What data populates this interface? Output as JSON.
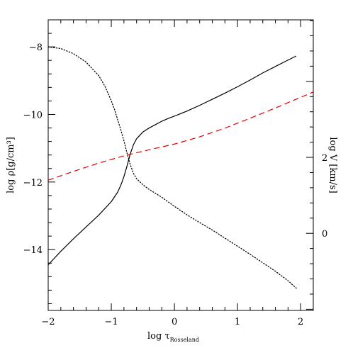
{
  "chart_data": {
    "type": "line",
    "title": "",
    "xlabel": "log τ",
    "xlabel_sub": "Rosseland",
    "ylabel_left": "log ρ[g/cm³]",
    "ylabel_right": "log V [km/s]",
    "xlim": [
      -2,
      2.2
    ],
    "ylim_left": [
      -15.8,
      -7.2
    ],
    "ylim_right": [
      -2.03,
      5.62
    ],
    "x_ticks": [
      -2,
      -1,
      0,
      1,
      2
    ],
    "x_tick_labels": [
      "−2",
      "−1",
      "0",
      "1",
      "2"
    ],
    "y_left_ticks": [
      -8,
      -10,
      -12,
      -14
    ],
    "y_left_tick_labels": [
      "−8",
      "−10",
      "−12",
      "−14"
    ],
    "y_right_ticks": [
      0,
      2
    ],
    "y_right_tick_labels": [
      "0",
      "2"
    ],
    "grid": false,
    "series": [
      {
        "axis": "left",
        "style": "solid",
        "color": "#000000",
        "x": [
          -2.0,
          -1.8,
          -1.6,
          -1.4,
          -1.2,
          -1.0,
          -0.9,
          -0.85,
          -0.8,
          -0.75,
          -0.7,
          -0.65,
          -0.6,
          -0.5,
          -0.4,
          -0.3,
          -0.2,
          -0.1,
          0.0,
          0.2,
          0.4,
          0.6,
          0.8,
          1.0,
          1.2,
          1.4,
          1.6,
          1.8,
          1.93
        ],
        "y": [
          -14.45,
          -14.05,
          -13.68,
          -13.33,
          -12.98,
          -12.58,
          -12.3,
          -12.1,
          -11.84,
          -11.52,
          -11.17,
          -10.9,
          -10.72,
          -10.52,
          -10.4,
          -10.3,
          -10.2,
          -10.12,
          -10.05,
          -9.9,
          -9.73,
          -9.55,
          -9.37,
          -9.18,
          -8.98,
          -8.77,
          -8.58,
          -8.39,
          -8.27
        ]
      },
      {
        "axis": "left",
        "style": "dotted",
        "color": "#000000",
        "x": [
          -2.0,
          -1.8,
          -1.6,
          -1.4,
          -1.2,
          -1.1,
          -1.0,
          -0.95,
          -0.9,
          -0.85,
          -0.8,
          -0.75,
          -0.7,
          -0.65,
          -0.6,
          -0.5,
          -0.4,
          -0.2,
          0.0,
          0.2,
          0.4,
          0.6,
          0.8,
          1.0,
          1.2,
          1.4,
          1.6,
          1.8,
          1.93
        ],
        "y": [
          -8.0,
          -8.05,
          -8.2,
          -8.45,
          -8.85,
          -9.17,
          -9.6,
          -9.85,
          -10.15,
          -10.45,
          -10.78,
          -11.15,
          -11.48,
          -11.74,
          -11.9,
          -12.08,
          -12.22,
          -12.45,
          -12.72,
          -12.97,
          -13.2,
          -13.42,
          -13.66,
          -13.9,
          -14.14,
          -14.39,
          -14.64,
          -14.92,
          -15.14
        ]
      },
      {
        "axis": "right",
        "style": "dashed",
        "color": "#e00000",
        "x": [
          -2.0,
          -1.6,
          -1.2,
          -0.8,
          -0.4,
          0.0,
          0.4,
          0.8,
          1.2,
          1.6,
          2.0,
          2.2
        ],
        "y": [
          1.4,
          1.63,
          1.85,
          2.04,
          2.2,
          2.35,
          2.54,
          2.77,
          3.03,
          3.3,
          3.58,
          3.72
        ]
      }
    ]
  }
}
